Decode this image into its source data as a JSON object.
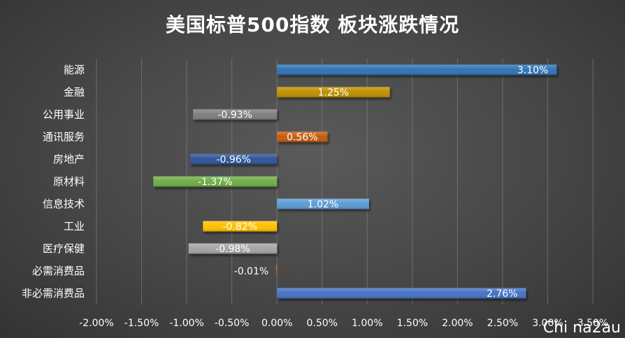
{
  "chart_data": {
    "type": "bar",
    "orientation": "horizontal",
    "title": "美国标普500指数 板块涨跌情况",
    "categories": [
      "能源",
      "金融",
      "公用事业",
      "通讯服务",
      "房地产",
      "原材料",
      "信息技术",
      "工业",
      "医疗保健",
      "必需消费品",
      "非必需消费品"
    ],
    "values": [
      3.1,
      1.25,
      -0.93,
      0.56,
      -0.96,
      -1.37,
      1.02,
      -0.82,
      -0.98,
      -0.01,
      2.76
    ],
    "data_labels": [
      "3.10%",
      "1.25%",
      "-0.93%",
      "0.56%",
      "-0.96%",
      "-1.37%",
      "1.02%",
      "-0.82%",
      "-0.98%",
      "-0.01%",
      "2.76%"
    ],
    "colors": [
      "#2e75b6",
      "#bf9000",
      "#7f7f7f",
      "#c55a11",
      "#2f5597",
      "#70ad47",
      "#5b9bd5",
      "#ffc000",
      "#a5a5a5",
      "#c55a11",
      "#4472c4"
    ],
    "xlim": [
      -2.0,
      3.5
    ],
    "x_ticks": [
      -2.0,
      -1.5,
      -1.0,
      -0.5,
      0.0,
      0.5,
      1.0,
      1.5,
      2.0,
      2.5,
      3.0,
      3.5
    ],
    "x_tick_labels": [
      "-2.00%",
      "-1.50%",
      "-1.00%",
      "-0.50%",
      "0.00%",
      "0.50%",
      "1.00%",
      "1.50%",
      "2.00%",
      "2.50%",
      "3.00%",
      "3.50%"
    ],
    "grid": true,
    "legend": "none"
  },
  "watermark": "Chi na2au"
}
